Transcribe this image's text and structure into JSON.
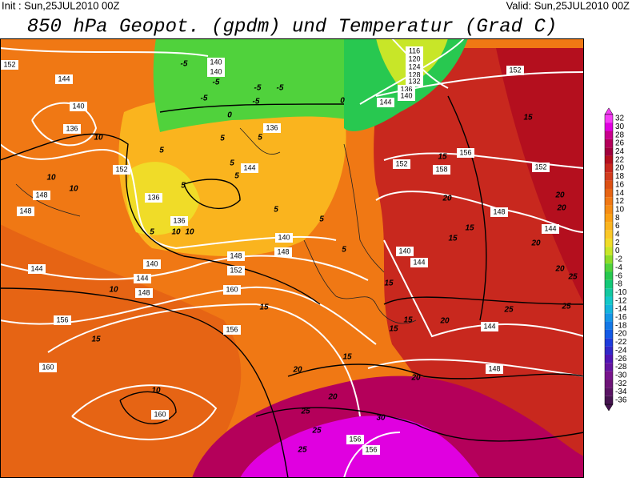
{
  "header": {
    "init": "Init : Sun,25JUL2010 00Z",
    "valid": "Valid: Sun,25JUL2010 00Z",
    "title": "850 hPa Geopot. (gpdm) und Temperatur (Grad C)"
  },
  "colorbar": {
    "labels": [
      32,
      30,
      28,
      26,
      24,
      22,
      20,
      18,
      16,
      14,
      12,
      10,
      8,
      6,
      4,
      2,
      0,
      -2,
      -4,
      -6,
      -8,
      -10,
      -12,
      -14,
      -16,
      -18,
      -20,
      -22,
      -24,
      -26,
      -28,
      -30,
      -32,
      -34,
      -36
    ],
    "colors": [
      "#f53cf5",
      "#e000e0",
      "#c8008c",
      "#b4005a",
      "#a0003c",
      "#b40f1e",
      "#c8281e",
      "#d23c1e",
      "#dc5014",
      "#e66414",
      "#f07814",
      "#f58c14",
      "#faa014",
      "#fab41e",
      "#fac828",
      "#f0dc28",
      "#c8e628",
      "#8cdc28",
      "#50d23c",
      "#28c850",
      "#14c878",
      "#14c8a0",
      "#14c8c8",
      "#14b4dc",
      "#1496e6",
      "#1478e6",
      "#145ae6",
      "#1e3cdc",
      "#3228c8",
      "#5014b4",
      "#6414a0",
      "#78148c",
      "#6e1478",
      "#5a1464",
      "#461450"
    ]
  },
  "geopotential_labels": [
    "152",
    "144",
    "140",
    "136",
    "148",
    "148",
    "152",
    "144",
    "148",
    "156",
    "160",
    "160",
    "160",
    "140",
    "136",
    "136",
    "140",
    "144",
    "148",
    "152",
    "156",
    "140",
    "136",
    "144",
    "140",
    "148",
    "152",
    "144",
    "156",
    "158",
    "152",
    "148",
    "144",
    "144",
    "148",
    "156",
    "156",
    "116",
    "120",
    "124",
    "128",
    "132",
    "136",
    "140",
    "152",
    "140",
    "144"
  ],
  "temperature_labels": [
    "10",
    "10",
    "10",
    "10",
    "10",
    "10",
    "10",
    "15",
    "-5",
    "-5",
    "-5",
    "-5",
    "-5",
    "-5",
    "0",
    "0",
    "5",
    "5",
    "5",
    "5",
    "5",
    "5",
    "5",
    "5",
    "5",
    "5",
    "15",
    "15",
    "15",
    "20",
    "15",
    "20",
    "20",
    "20",
    "25",
    "25",
    "25",
    "20",
    "20",
    "20",
    "25",
    "30",
    "25",
    "15",
    "15",
    "15",
    "20",
    "20",
    "25",
    "15",
    "15"
  ]
}
